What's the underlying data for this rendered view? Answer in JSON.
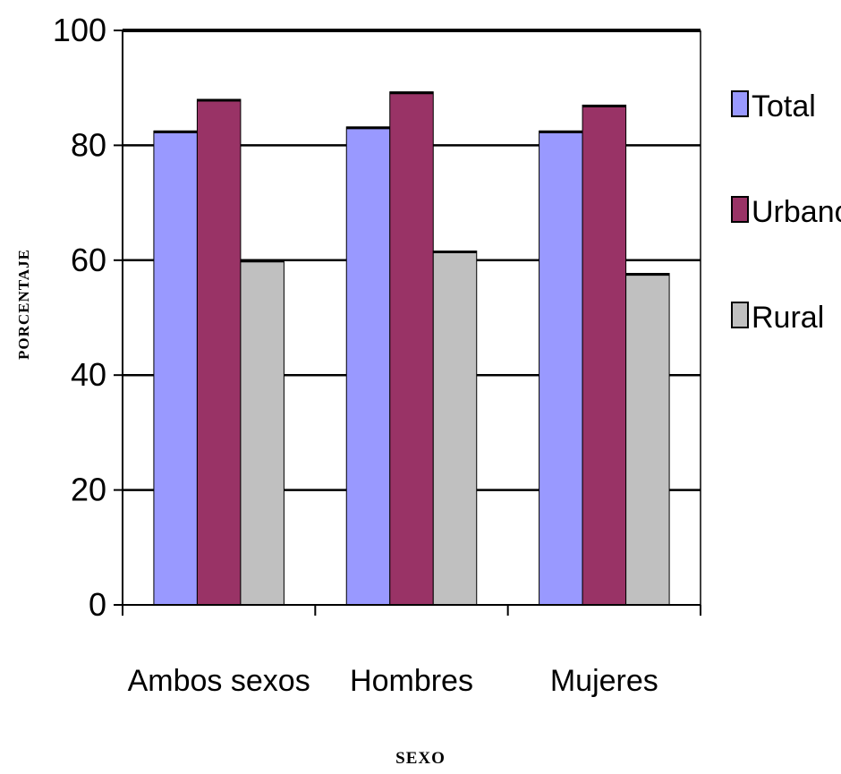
{
  "chart_data": {
    "type": "bar",
    "categories": [
      "Ambos sexos",
      "Hombres",
      "Mujeres"
    ],
    "series": [
      {
        "name": "Total",
        "values": [
          82.5,
          83.2,
          82.5
        ],
        "color": "#9999FF"
      },
      {
        "name": "Urbano",
        "values": [
          88,
          89.3,
          87
        ],
        "color": "#993366"
      },
      {
        "name": "Rural",
        "values": [
          60,
          61.6,
          57.7
        ],
        "color": "#C0C0C0"
      }
    ],
    "title": "",
    "xlabel": "SEXO",
    "ylabel": "PORCENTAJE",
    "ylim": [
      0,
      100
    ],
    "yticks": [
      0,
      20,
      40,
      60,
      80,
      100
    ],
    "grid": true,
    "legend_position": "right"
  }
}
